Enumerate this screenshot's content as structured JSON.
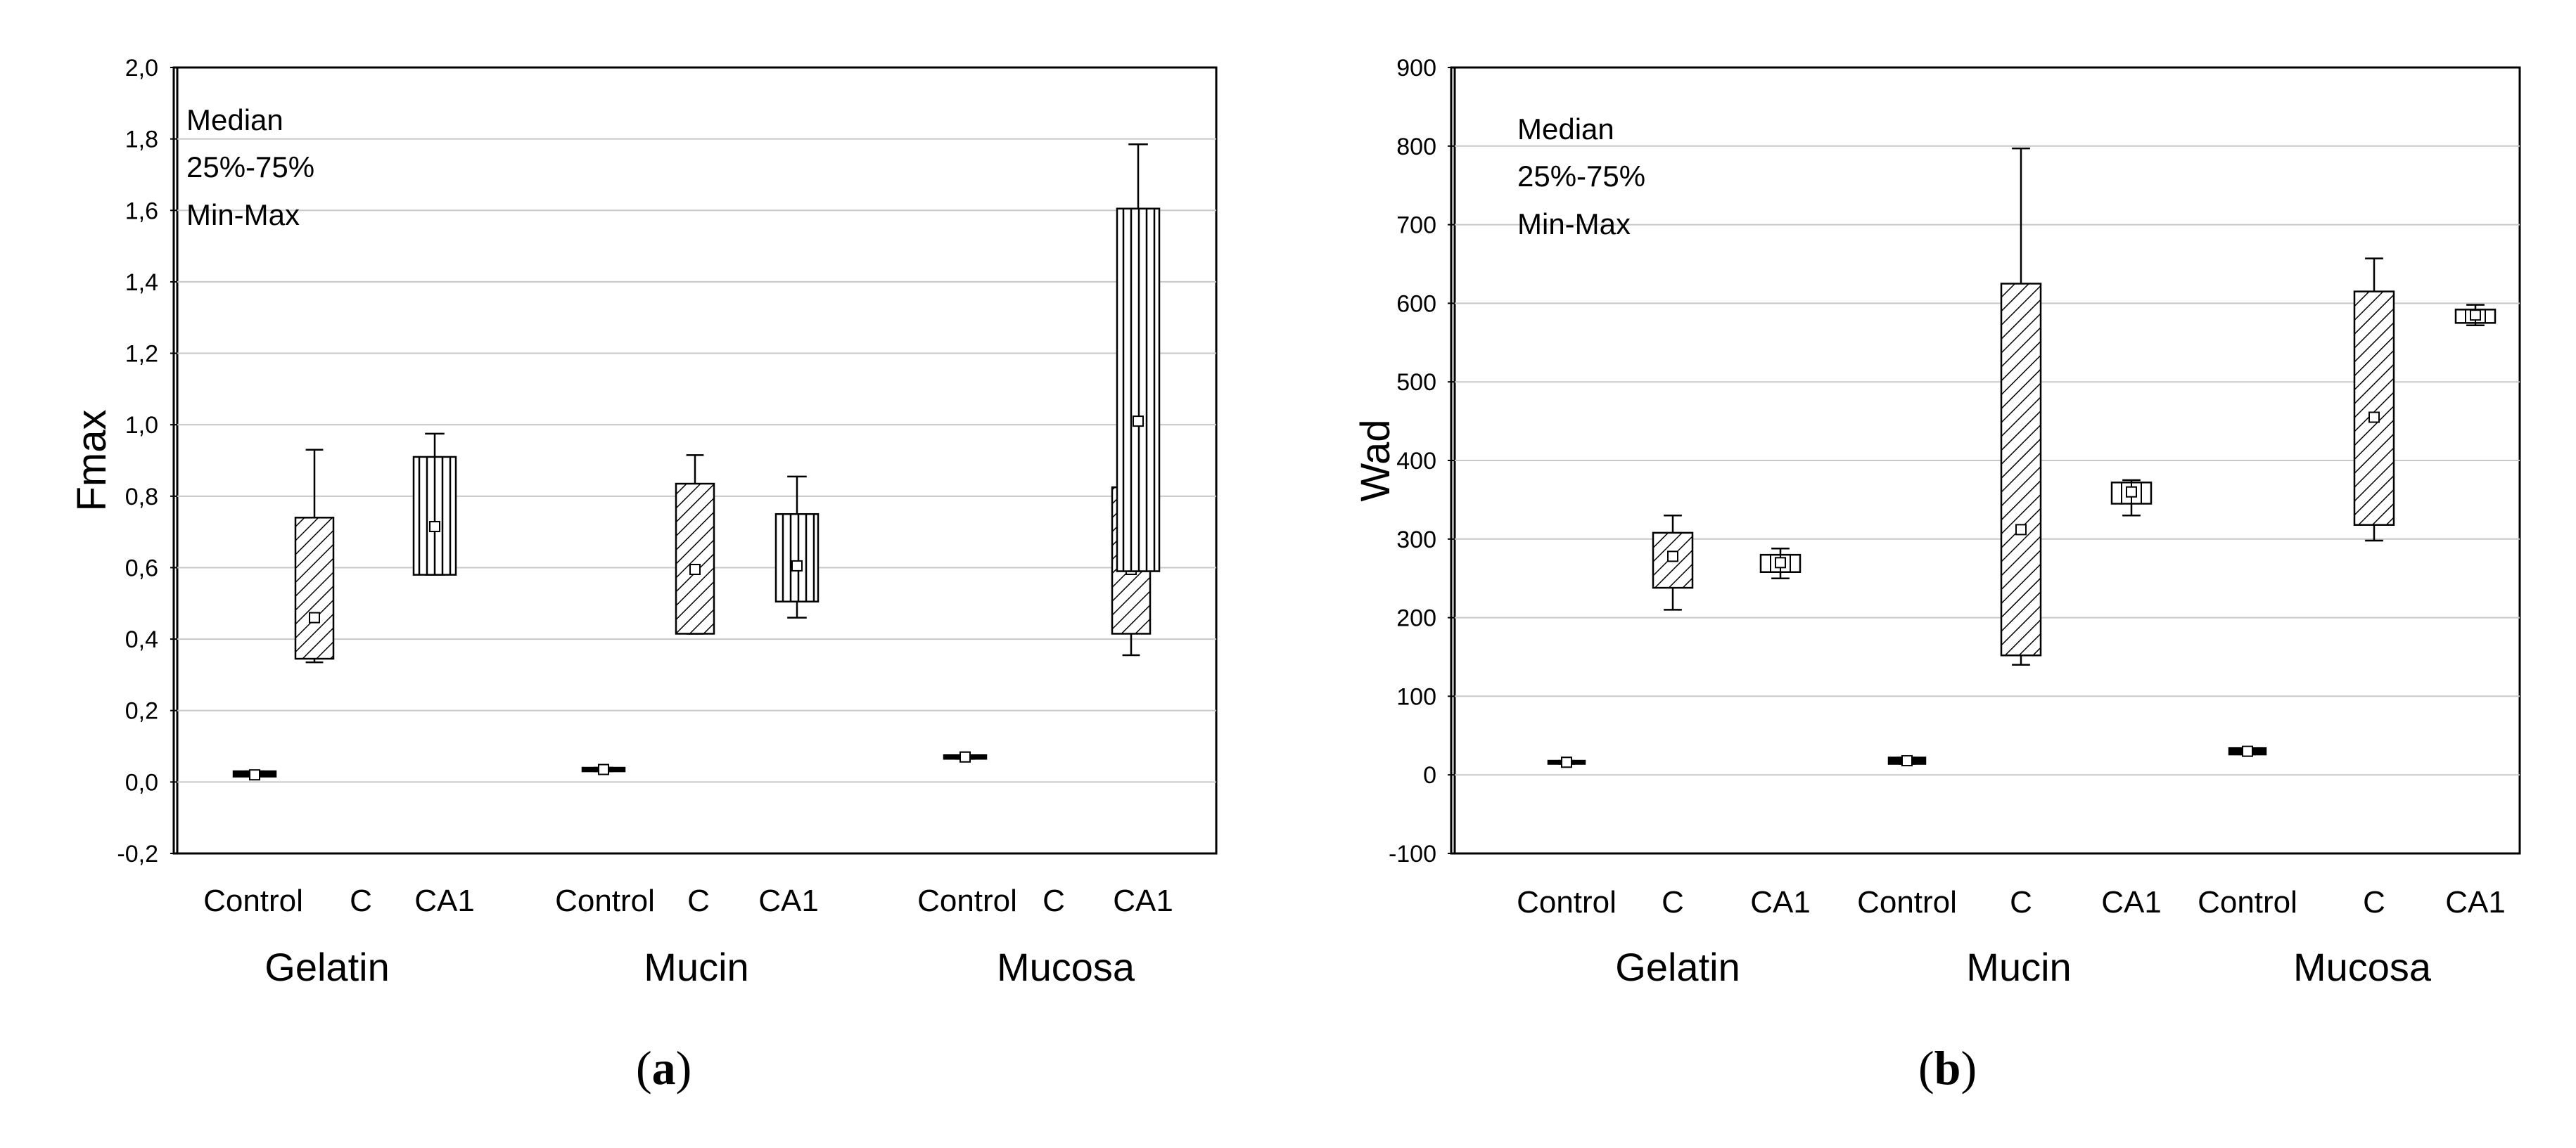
{
  "chart_data": [
    {
      "type": "box",
      "panel_label": "a",
      "ylabel": "Fmax",
      "ylim": [
        -0.2,
        2.0
      ],
      "ytick_step": 0.2,
      "ytick_labels": [
        "-0,2",
        "0,0",
        "0,2",
        "0,4",
        "0,6",
        "0,8",
        "1,0",
        "1,2",
        "1,4",
        "1,6",
        "1,8",
        "2,0"
      ],
      "grid": true,
      "legend": [
        "Median",
        "25%-75%",
        "Min-Max"
      ],
      "legend_position": "top-left",
      "groups": [
        "Gelatin",
        "Mucin",
        "Mucosa"
      ],
      "categories": [
        "Control",
        "C",
        "CA1"
      ],
      "boxes": [
        {
          "group": "Gelatin",
          "category": "Control",
          "min": 0.015,
          "q1": 0.015,
          "median": 0.02,
          "q3": 0.03,
          "max": 0.03
        },
        {
          "group": "Gelatin",
          "category": "C",
          "min": 0.335,
          "q1": 0.345,
          "median": 0.46,
          "q3": 0.74,
          "max": 0.93
        },
        {
          "group": "Gelatin",
          "category": "CA1",
          "min": 0.58,
          "q1": 0.58,
          "median": 0.715,
          "q3": 0.91,
          "max": 0.975
        },
        {
          "group": "Mucin",
          "category": "Control",
          "min": 0.03,
          "q1": 0.03,
          "median": 0.035,
          "q3": 0.04,
          "max": 0.04
        },
        {
          "group": "Mucin",
          "category": "C",
          "min": 0.415,
          "q1": 0.415,
          "median": 0.595,
          "q3": 0.835,
          "max": 0.915
        },
        {
          "group": "Mucin",
          "category": "CA1",
          "min": 0.46,
          "q1": 0.505,
          "median": 0.605,
          "q3": 0.75,
          "max": 0.855
        },
        {
          "group": "Mucosa",
          "category": "Control",
          "min": 0.065,
          "q1": 0.065,
          "median": 0.07,
          "q3": 0.075,
          "max": 0.075
        },
        {
          "group": "Mucosa",
          "category": "C",
          "min": 0.355,
          "q1": 0.415,
          "median": 0.595,
          "q3": 0.825,
          "max": 0.93
        },
        {
          "group": "Mucosa",
          "category": "CA1",
          "min": 0.59,
          "q1": 0.59,
          "median": 1.01,
          "q3": 1.605,
          "max": 1.785
        }
      ]
    },
    {
      "type": "box",
      "panel_label": "b",
      "ylabel": "Wad",
      "ylim": [
        -100,
        900
      ],
      "ytick_step": 100,
      "ytick_labels": [
        "-100",
        "0",
        "100",
        "200",
        "300",
        "400",
        "500",
        "600",
        "700",
        "800",
        "900"
      ],
      "grid": true,
      "legend": [
        "Median",
        "25%-75%",
        "Min-Max"
      ],
      "legend_position": "top-left",
      "groups": [
        "Gelatin",
        "Mucin",
        "Mucosa"
      ],
      "categories": [
        "Control",
        "C",
        "CA1"
      ],
      "boxes": [
        {
          "group": "Gelatin",
          "category": "Control",
          "min": 14,
          "q1": 14,
          "median": 16,
          "q3": 18,
          "max": 18
        },
        {
          "group": "Gelatin",
          "category": "C",
          "min": 210,
          "q1": 238,
          "median": 278,
          "q3": 308,
          "max": 330
        },
        {
          "group": "Gelatin",
          "category": "CA1",
          "min": 250,
          "q1": 258,
          "median": 270,
          "q3": 280,
          "max": 288
        },
        {
          "group": "Mucin",
          "category": "Control",
          "min": 14,
          "q1": 14,
          "median": 18,
          "q3": 22,
          "max": 22
        },
        {
          "group": "Mucin",
          "category": "C",
          "min": 140,
          "q1": 152,
          "median": 312,
          "q3": 625,
          "max": 797
        },
        {
          "group": "Mucin",
          "category": "CA1",
          "min": 330,
          "q1": 345,
          "median": 360,
          "q3": 372,
          "max": 375
        },
        {
          "group": "Mucosa",
          "category": "Control",
          "min": 26,
          "q1": 26,
          "median": 30,
          "q3": 34,
          "max": 34
        },
        {
          "group": "Mucosa",
          "category": "C",
          "min": 298,
          "q1": 318,
          "median": 455,
          "q3": 615,
          "max": 657
        },
        {
          "group": "Mucosa",
          "category": "CA1",
          "min": 572,
          "q1": 575,
          "median": 585,
          "q3": 592,
          "max": 598
        }
      ]
    }
  ],
  "colors": {
    "axis": "#000000",
    "grid": "#c8c8c8",
    "box_fill": "#ffffff",
    "text": "#000000"
  }
}
